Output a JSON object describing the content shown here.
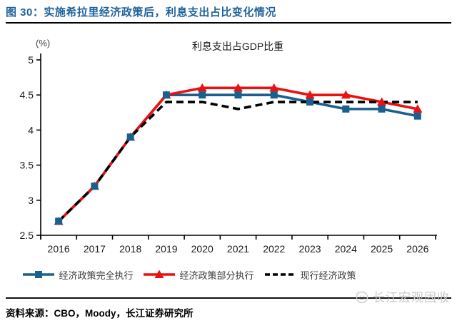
{
  "header": {
    "title": "图 30：实施希拉里经济政策后，利息支出占比变化情况",
    "title_color": "#1F639C"
  },
  "chart_data": {
    "type": "line",
    "title": "利息支出占GDP比重",
    "unit_label": "(%)",
    "x": [
      "2016",
      "2017",
      "2018",
      "2019",
      "2020",
      "2021",
      "2022",
      "2023",
      "2024",
      "2025",
      "2026"
    ],
    "ylim": [
      2.5,
      5
    ],
    "ytick_step": 0.5,
    "grid": false,
    "legend_position": "bottom",
    "axis_color": "#000000",
    "series": [
      {
        "name": "经济政策完全执行",
        "color": "#19608F",
        "marker": "square",
        "dash": "solid",
        "values": [
          2.7,
          3.2,
          3.9,
          4.5,
          4.5,
          4.5,
          4.5,
          4.4,
          4.3,
          4.3,
          4.2
        ]
      },
      {
        "name": "经济政策部分执行",
        "color": "#EC1010",
        "marker": "triangle",
        "dash": "solid",
        "values": [
          2.7,
          3.2,
          3.9,
          4.5,
          4.6,
          4.6,
          4.6,
          4.5,
          4.5,
          4.4,
          4.3
        ]
      },
      {
        "name": "现行经济政策",
        "color": "#000000",
        "marker": "none",
        "dash": "dashed",
        "values": [
          2.7,
          3.2,
          3.9,
          4.4,
          4.4,
          4.3,
          4.4,
          4.4,
          4.4,
          4.4,
          4.4
        ]
      }
    ]
  },
  "footer": {
    "source": "资料来源：CBO，Moody，长江证券研究所",
    "watermark": "长江宏观固收",
    "watermark_color": "#C9C9C9"
  }
}
